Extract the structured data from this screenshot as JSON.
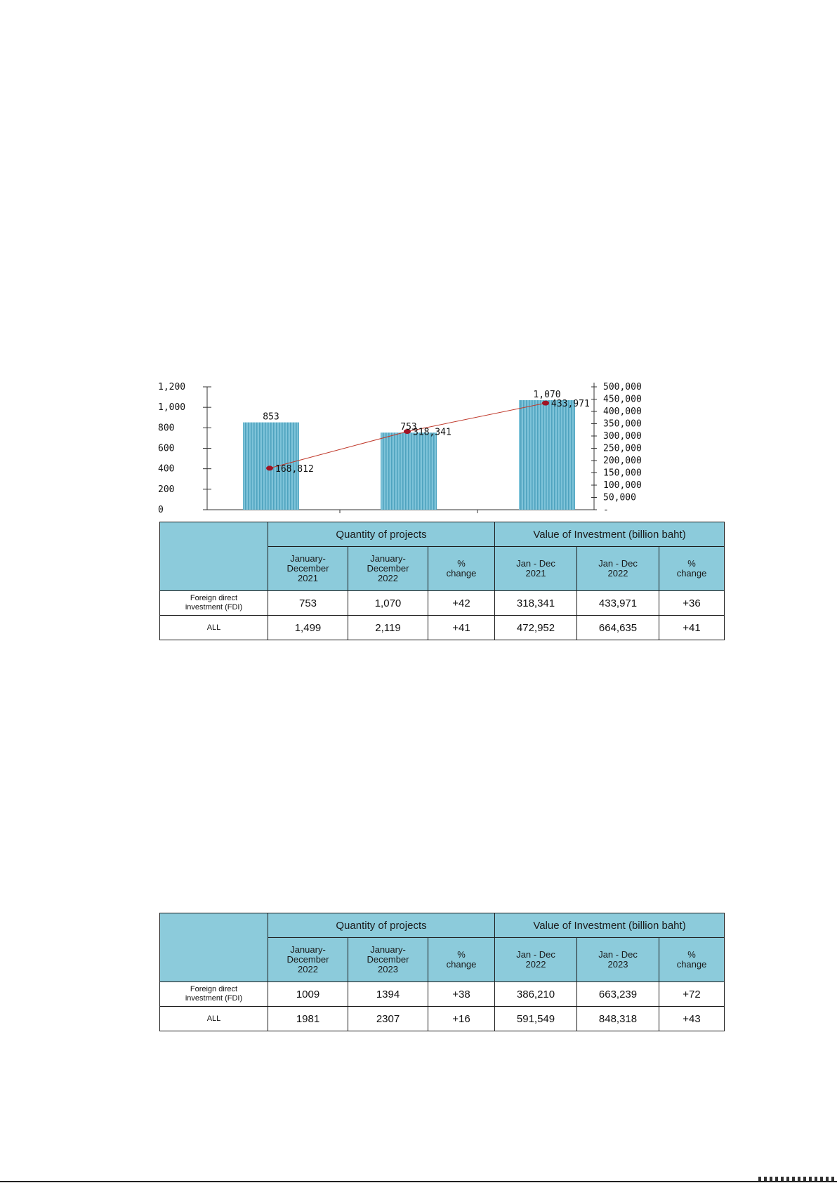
{
  "chart_data": {
    "type": "bar+line",
    "categories": [
      "",
      "",
      ""
    ],
    "series": [
      {
        "type": "bar",
        "axis": "left",
        "values": [
          853,
          753,
          1070
        ],
        "data_labels": [
          "853",
          "753",
          "1,070"
        ]
      },
      {
        "type": "line",
        "axis": "right",
        "values": [
          168812,
          318341,
          433971
        ],
        "data_labels": [
          "168,812",
          "318,341",
          "433,971"
        ]
      }
    ],
    "y_left": {
      "ylim": [
        0,
        1200
      ],
      "ticks": [
        0,
        200,
        400,
        600,
        800,
        1000,
        1200
      ],
      "tick_labels": [
        "0",
        "200",
        "400",
        "600",
        "800",
        "1,000",
        "1,200"
      ]
    },
    "y_right": {
      "ylim": [
        0,
        500000
      ],
      "ticks": [
        0,
        50000,
        100000,
        150000,
        200000,
        250000,
        300000,
        350000,
        400000,
        450000,
        500000
      ],
      "tick_labels": [
        "-",
        "50,000",
        "100,000",
        "150,000",
        "200,000",
        "250,000",
        "300,000",
        "350,000",
        "400,000",
        "450,000",
        "500,000"
      ]
    },
    "colors": {
      "bar_fill": "#7ec3d9",
      "bar_stripe": "#4fa3bf",
      "line": "#c0392b",
      "marker": "#a01525"
    },
    "legend": "none",
    "grid": false
  },
  "table1": {
    "group_headers": [
      "Quantity of projects",
      "Value of Investment (billion baht)"
    ],
    "sub_headers": [
      "January-\nDecember\n2021",
      "January-\nDecember\n2022",
      "%\nchange",
      "Jan - Dec\n2021",
      "Jan - Dec\n2022",
      "%\nchange"
    ],
    "rows": [
      {
        "label": "Foreign direct\ninvestment (FDI)",
        "values": [
          "753",
          "1,070",
          "+42",
          "318,341",
          "433,971",
          "+36"
        ]
      },
      {
        "label": "ALL",
        "values": [
          "1,499",
          "2,119",
          "+41",
          "472,952",
          "664,635",
          "+41"
        ]
      }
    ]
  },
  "table2": {
    "group_headers": [
      "Quantity of projects",
      "Value of Investment (billion baht)"
    ],
    "sub_headers": [
      "January-\nDecember\n2022",
      "January-\nDecember\n2023",
      "%\nchange",
      "Jan - Dec\n2022",
      "Jan - Dec\n2023",
      "%\nchange"
    ],
    "rows": [
      {
        "label": "Foreign direct\ninvestment (FDI)",
        "values": [
          "1009",
          "1394",
          "+38",
          "386,210",
          "663,239",
          "+72"
        ]
      },
      {
        "label": "ALL",
        "values": [
          "1981",
          "2307",
          "+16",
          "591,549",
          "848,318",
          "+43"
        ]
      }
    ]
  },
  "colors": {
    "table_header": "#8ccbdb",
    "border": "#1a1a1a"
  }
}
